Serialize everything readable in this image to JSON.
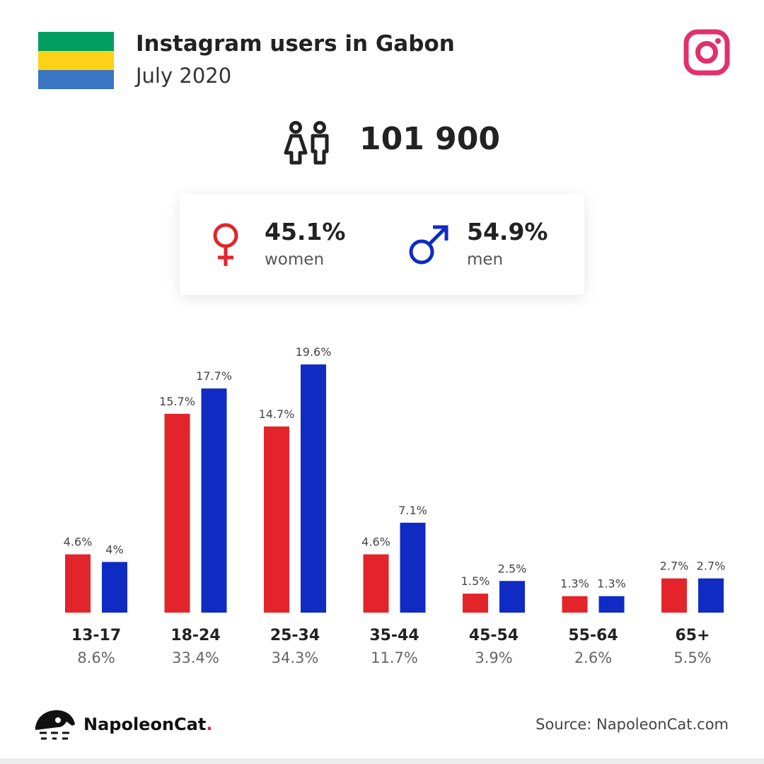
{
  "header": {
    "title": "Instagram users in Gabon",
    "subtitle": "July 2020",
    "flag_colors": [
      "#009E60",
      "#FCD116",
      "#3A75C4"
    ]
  },
  "total": {
    "value": "101 900",
    "icon": "people-icon"
  },
  "gender": {
    "women": {
      "percent": "45.1%",
      "label": "women",
      "color": "#e3242b",
      "icon": "female-symbol-icon"
    },
    "men": {
      "percent": "54.9%",
      "label": "men",
      "color": "#0f2bc4",
      "icon": "male-symbol-icon"
    }
  },
  "chart_data": {
    "type": "bar",
    "categories": [
      "13-17",
      "18-24",
      "25-34",
      "35-44",
      "45-54",
      "55-64",
      "65+"
    ],
    "category_totals": [
      "8.6%",
      "33.4%",
      "34.3%",
      "11.7%",
      "3.9%",
      "2.6%",
      "5.5%"
    ],
    "series": [
      {
        "name": "women",
        "color": "#e3242b",
        "values": [
          4.6,
          15.7,
          14.7,
          4.6,
          1.5,
          1.3,
          2.7
        ],
        "labels": [
          "4.6%",
          "15.7%",
          "14.7%",
          "4.6%",
          "1.5%",
          "1.3%",
          "2.7%"
        ]
      },
      {
        "name": "men",
        "color": "#0f2bc4",
        "values": [
          4,
          17.7,
          19.6,
          7.1,
          2.5,
          1.3,
          2.7
        ],
        "labels": [
          "4%",
          "17.7%",
          "19.6%",
          "7.1%",
          "2.5%",
          "1.3%",
          "2.7%"
        ]
      }
    ],
    "unit": "%",
    "grid": false
  },
  "footer": {
    "brand_name": "NapoleonCat",
    "brand_dot": ".",
    "source": "Source: NapoleonCat.com"
  }
}
